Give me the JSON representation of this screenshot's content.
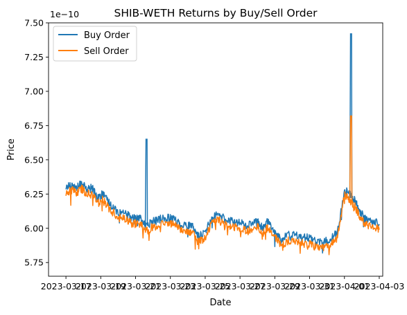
{
  "chart_data": {
    "type": "line",
    "title": "SHIB-WETH Returns by Buy/Sell Order",
    "xlabel": "Date",
    "ylabel": "Price",
    "y_offset_text": "1e−10",
    "ylim": [
      5.65,
      7.5
    ],
    "xlim": [
      -1.0,
      18.2
    ],
    "yticks": [
      5.75,
      6.0,
      6.25,
      6.5,
      6.75,
      7.0,
      7.25,
      7.5
    ],
    "ytick_labels": [
      "5.75",
      "6.00",
      "6.25",
      "6.50",
      "6.75",
      "7.00",
      "7.25",
      "7.50"
    ],
    "xticks": [
      0,
      2,
      4,
      6,
      8,
      10,
      12,
      14,
      16,
      18
    ],
    "xtick_labels": [
      "2023-03-17",
      "2023-03-19",
      "2023-03-21",
      "2023-03-23",
      "2023-03-25",
      "2023-03-27",
      "2023-03-29",
      "2023-03-31",
      "2023-04-01",
      "2023-04-03"
    ],
    "legend_position": "upper left",
    "grid": false,
    "series": [
      {
        "name": "Buy Order",
        "color": "#1f77b4",
        "points": [
          [
            0.0,
            6.3
          ],
          [
            0.3,
            6.32
          ],
          [
            0.6,
            6.29
          ],
          [
            0.9,
            6.33
          ],
          [
            1.2,
            6.28
          ],
          [
            1.5,
            6.3
          ],
          [
            1.8,
            6.22
          ],
          [
            2.1,
            6.25
          ],
          [
            2.5,
            6.18
          ],
          [
            3.0,
            6.12
          ],
          [
            3.5,
            6.1
          ],
          [
            3.8,
            6.07
          ],
          [
            4.2,
            6.08
          ],
          [
            4.6,
            6.02
          ],
          [
            5.0,
            6.05
          ],
          [
            5.5,
            6.07
          ],
          [
            6.0,
            6.08
          ],
          [
            6.3,
            6.06
          ],
          [
            6.6,
            6.03
          ],
          [
            7.0,
            6.02
          ],
          [
            7.3,
            6.01
          ],
          [
            7.6,
            5.94
          ],
          [
            8.0,
            5.97
          ],
          [
            8.4,
            6.08
          ],
          [
            8.8,
            6.1
          ],
          [
            9.2,
            6.06
          ],
          [
            9.6,
            6.05
          ],
          [
            10.0,
            6.04
          ],
          [
            10.5,
            6.02
          ],
          [
            11.0,
            6.05
          ],
          [
            11.3,
            6.0
          ],
          [
            11.6,
            6.05
          ],
          [
            12.0,
            5.97
          ],
          [
            12.4,
            5.92
          ],
          [
            12.8,
            5.95
          ],
          [
            13.2,
            5.95
          ],
          [
            13.6,
            5.93
          ],
          [
            14.0,
            5.93
          ],
          [
            14.4,
            5.9
          ],
          [
            14.8,
            5.9
          ],
          [
            15.2,
            5.92
          ],
          [
            15.6,
            5.97
          ],
          [
            16.0,
            6.28
          ],
          [
            16.3,
            6.25
          ],
          [
            16.6,
            6.2
          ],
          [
            16.9,
            6.12
          ],
          [
            17.2,
            6.07
          ],
          [
            17.6,
            6.06
          ],
          [
            18.0,
            6.03
          ]
        ],
        "spikes": [
          {
            "x": 4.6,
            "peak": 6.65
          },
          {
            "x": 16.35,
            "peak": 7.42
          }
        ]
      },
      {
        "name": "Sell Order",
        "color": "#ff7f0e",
        "points": [
          [
            0.0,
            6.25
          ],
          [
            0.3,
            6.28
          ],
          [
            0.6,
            6.26
          ],
          [
            0.9,
            6.29
          ],
          [
            1.2,
            6.25
          ],
          [
            1.5,
            6.26
          ],
          [
            1.8,
            6.19
          ],
          [
            2.1,
            6.21
          ],
          [
            2.5,
            6.14
          ],
          [
            3.0,
            6.08
          ],
          [
            3.5,
            6.06
          ],
          [
            3.8,
            6.03
          ],
          [
            4.2,
            6.04
          ],
          [
            4.6,
            5.98
          ],
          [
            5.0,
            6.01
          ],
          [
            5.5,
            6.03
          ],
          [
            6.0,
            6.04
          ],
          [
            6.3,
            6.02
          ],
          [
            6.6,
            5.99
          ],
          [
            7.0,
            5.98
          ],
          [
            7.3,
            5.97
          ],
          [
            7.6,
            5.9
          ],
          [
            8.0,
            5.93
          ],
          [
            8.4,
            6.04
          ],
          [
            8.8,
            6.06
          ],
          [
            9.2,
            6.02
          ],
          [
            9.6,
            6.01
          ],
          [
            10.0,
            6.0
          ],
          [
            10.5,
            5.98
          ],
          [
            11.0,
            6.01
          ],
          [
            11.3,
            5.96
          ],
          [
            11.6,
            6.01
          ],
          [
            12.0,
            5.93
          ],
          [
            12.4,
            5.88
          ],
          [
            12.8,
            5.91
          ],
          [
            13.2,
            5.91
          ],
          [
            13.6,
            5.89
          ],
          [
            14.0,
            5.89
          ],
          [
            14.4,
            5.86
          ],
          [
            14.8,
            5.86
          ],
          [
            15.2,
            5.88
          ],
          [
            15.6,
            5.93
          ],
          [
            16.0,
            6.24
          ],
          [
            16.3,
            6.21
          ],
          [
            16.6,
            6.16
          ],
          [
            16.9,
            6.08
          ],
          [
            17.2,
            6.03
          ],
          [
            17.6,
            6.02
          ],
          [
            18.0,
            5.99
          ]
        ],
        "spikes": [
          {
            "x": 16.35,
            "peak": 6.82
          }
        ]
      }
    ]
  }
}
